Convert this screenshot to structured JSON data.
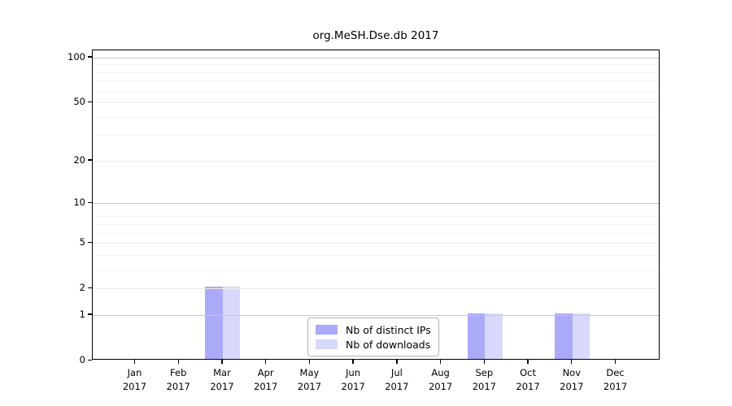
{
  "title": "org.MeSH.Dse.db 2017",
  "colors": {
    "distinct_ips": "#aaaaf8",
    "downloads": "#d8d9fa",
    "grid_major": "#c8c8c8",
    "grid_mid": "#ebebeb",
    "grid_minor": "#f4f4f4",
    "axis": "#000000",
    "legend_border": "#b3b3b3"
  },
  "y_axis": {
    "tick_labels": [
      0,
      1,
      2,
      5,
      10,
      20,
      50,
      100
    ],
    "minor_ticks": [
      3,
      4,
      6,
      7,
      8,
      9,
      30,
      40,
      60,
      70,
      80,
      90
    ]
  },
  "x_axis": {
    "categories": [
      {
        "month": "Jan",
        "year": "2017"
      },
      {
        "month": "Feb",
        "year": "2017"
      },
      {
        "month": "Mar",
        "year": "2017"
      },
      {
        "month": "Apr",
        "year": "2017"
      },
      {
        "month": "May",
        "year": "2017"
      },
      {
        "month": "Jun",
        "year": "2017"
      },
      {
        "month": "Jul",
        "year": "2017"
      },
      {
        "month": "Aug",
        "year": "2017"
      },
      {
        "month": "Sep",
        "year": "2017"
      },
      {
        "month": "Oct",
        "year": "2017"
      },
      {
        "month": "Nov",
        "year": "2017"
      },
      {
        "month": "Dec",
        "year": "2017"
      }
    ]
  },
  "legend": {
    "items": [
      {
        "label": "Nb of distinct IPs",
        "color_key": "distinct_ips"
      },
      {
        "label": "Nb of downloads",
        "color_key": "downloads"
      }
    ]
  },
  "chart_data": {
    "type": "bar",
    "title": "org.MeSH.Dse.db 2017",
    "categories": [
      "Jan 2017",
      "Feb 2017",
      "Mar 2017",
      "Apr 2017",
      "May 2017",
      "Jun 2017",
      "Jul 2017",
      "Aug 2017",
      "Sep 2017",
      "Oct 2017",
      "Nov 2017",
      "Dec 2017"
    ],
    "series": [
      {
        "name": "Nb of distinct IPs",
        "values": [
          0,
          0,
          2,
          0,
          0,
          0,
          0,
          0,
          1,
          0,
          1,
          0
        ]
      },
      {
        "name": "Nb of downloads",
        "values": [
          0,
          0,
          2,
          0,
          0,
          0,
          0,
          0,
          1,
          0,
          1,
          0
        ]
      }
    ],
    "xlabel": "",
    "ylabel": "",
    "y_scale": "log10(value+1)",
    "y_tick_values": [
      0,
      1,
      2,
      5,
      10,
      20,
      50,
      100
    ],
    "ylim": [
      0,
      112
    ],
    "grid": "on",
    "legend_position": "inside bottom-center"
  }
}
